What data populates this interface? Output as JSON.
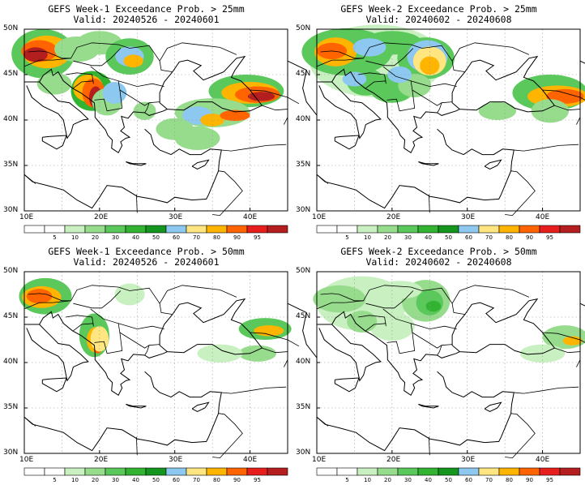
{
  "panels": [
    {
      "title": "GEFS Week-1 Exceedance Prob. > 25mm",
      "valid": "Valid: 20240526 - 20240601"
    },
    {
      "title": "GEFS Week-2 Exceedance Prob. > 25mm",
      "valid": "Valid: 20240602 - 20240608"
    },
    {
      "title": "GEFS Week-1 Exceedance Prob. > 50mm",
      "valid": "Valid: 20240526 - 20240601"
    },
    {
      "title": "GEFS Week-2 Exceedance Prob. > 50mm",
      "valid": "Valid: 20240602 - 20240608"
    }
  ],
  "lat_labels": [
    "50N",
    "45N",
    "40N",
    "35N",
    "30N"
  ],
  "lon_labels": [
    "10E",
    "20E",
    "30E",
    "40E"
  ],
  "colorbar": {
    "ticks": [
      "5",
      "10",
      "20",
      "30",
      "40",
      "50",
      "60",
      "70",
      "80",
      "90",
      "95"
    ],
    "colors": [
      "#ffffff",
      "#ffffff",
      "#c8f0c0",
      "#96dc8c",
      "#5ac85a",
      "#32b432",
      "#14961e",
      "#8cc8f0",
      "#ffe680",
      "#ffb400",
      "#ff6400",
      "#e61e1e",
      "#b41e1e"
    ]
  },
  "colors": {
    "land_border": "#000000",
    "grid": "#999999"
  }
}
